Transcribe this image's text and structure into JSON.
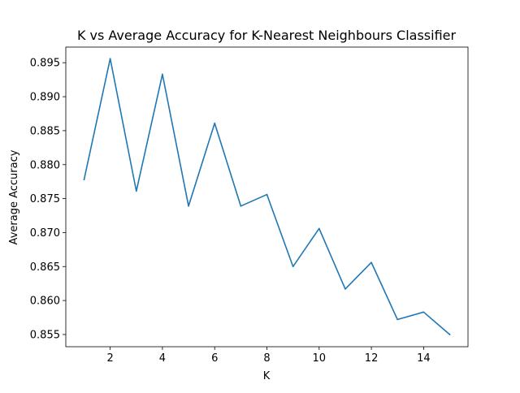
{
  "chart_data": {
    "type": "line",
    "title": "K vs Average Accuracy for K-Nearest Neighbours Classifier",
    "xlabel": "K",
    "ylabel": "Average Accuracy",
    "xlim": [
      0.3,
      15.7
    ],
    "ylim": [
      0.8532,
      0.8973
    ],
    "x_ticks": [
      2,
      4,
      6,
      8,
      10,
      12,
      14
    ],
    "x_tick_labels": [
      "2",
      "4",
      "6",
      "8",
      "10",
      "12",
      "14"
    ],
    "y_ticks": [
      0.855,
      0.86,
      0.865,
      0.87,
      0.875,
      0.88,
      0.885,
      0.89,
      0.895
    ],
    "y_tick_labels": [
      "0.855",
      "0.860",
      "0.865",
      "0.870",
      "0.875",
      "0.880",
      "0.885",
      "0.890",
      "0.895"
    ],
    "grid": false,
    "series": [
      {
        "color": "#1f77b4",
        "x": [
          1,
          2,
          3,
          4,
          5,
          6,
          7,
          8,
          9,
          10,
          11,
          12,
          13,
          14,
          15
        ],
        "values": [
          0.8778,
          0.8956,
          0.8761,
          0.8933,
          0.8739,
          0.8861,
          0.8739,
          0.8756,
          0.865,
          0.8706,
          0.8617,
          0.8656,
          0.8572,
          0.8583,
          0.855
        ]
      }
    ]
  }
}
